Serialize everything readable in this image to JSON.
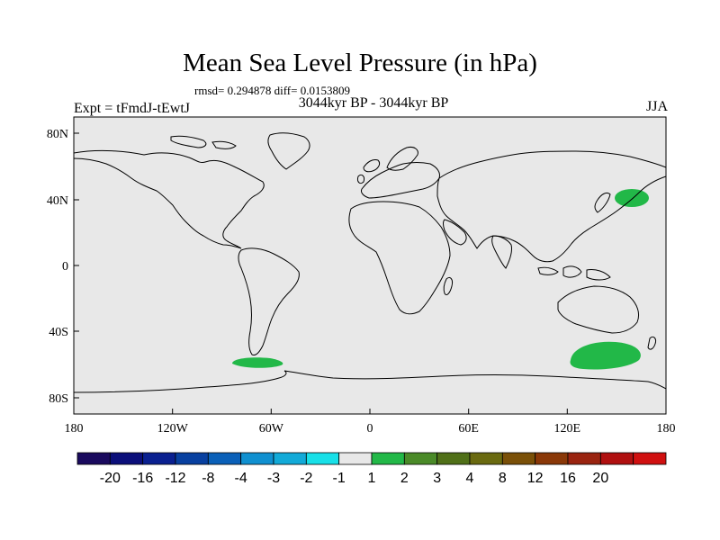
{
  "title": "Mean Sea Level Pressure (in hPa)",
  "stats": "rmsd= 0.294878 diff= 0.0153809",
  "left_label": "Expt = tFmdJ-tEwtJ",
  "center_label": "3044kyr BP - 3044kyr BP",
  "right_label": "JJA",
  "lat_labels": [
    "80N",
    "40N",
    "0",
    "40S",
    "80S"
  ],
  "lon_labels": [
    "180",
    "120W",
    "60W",
    "0",
    "60E",
    "120E",
    "180"
  ],
  "colorbar": {
    "colors": [
      "#1a0a5e",
      "#0b0f7a",
      "#0a2090",
      "#0840a0",
      "#0a60b8",
      "#1090d0",
      "#12aad8",
      "#18e0e8",
      "#e8e8e8",
      "#22b848",
      "#4a8a28",
      "#507018",
      "#6a6a10",
      "#7a5008",
      "#8a3808",
      "#9a2410",
      "#b01010",
      "#d01010"
    ],
    "labels": [
      "-20",
      "-16",
      "-12",
      "-8",
      "-4",
      "-3",
      "-2",
      "-1",
      "1",
      "2",
      "3",
      "4",
      "8",
      "12",
      "16",
      "20"
    ]
  },
  "colors": {
    "background": "#e8e8e8",
    "anomaly": "#22b848"
  }
}
